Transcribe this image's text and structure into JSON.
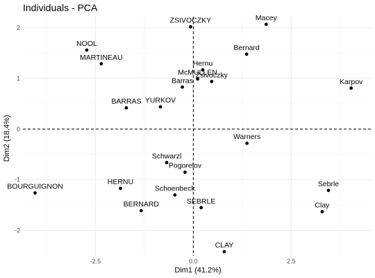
{
  "chart_data": {
    "type": "scatter",
    "title": "Individuals - PCA",
    "xlabel": "Dim1 (41.2%)",
    "ylabel": "Dim2 (18.4%)",
    "xlim": [
      -4.35,
      4.55
    ],
    "ylim": [
      -2.5,
      2.22
    ],
    "x_ticks": [
      -2.5,
      0.0,
      2.5
    ],
    "x_tick_labels": [
      "-2.5",
      "0.0",
      "2.5"
    ],
    "y_ticks": [
      -2,
      -1,
      0,
      1,
      2
    ],
    "y_tick_labels": [
      "-2",
      "-1",
      "0",
      "1",
      "2"
    ],
    "grid": true,
    "reference_lines": {
      "x": 0,
      "y": 0,
      "style": "dashed"
    },
    "points": [
      {
        "label": "ZSIVOCZKY",
        "x": -0.07,
        "y": 2.02
      },
      {
        "label": "Macey",
        "x": 1.86,
        "y": 2.07
      },
      {
        "label": "NOOL",
        "x": -2.72,
        "y": 1.56
      },
      {
        "label": "Bernard",
        "x": 1.36,
        "y": 1.48
      },
      {
        "label": "MARTINEAU",
        "x": -2.35,
        "y": 1.29
      },
      {
        "label": "Hernu",
        "x": 0.24,
        "y": 1.17
      },
      {
        "label": "McMULLEN",
        "x": 0.11,
        "y": 0.99
      },
      {
        "label": "Zsivoczky",
        "x": 0.47,
        "y": 0.94
      },
      {
        "label": "Barras",
        "x": -0.28,
        "y": 0.83
      },
      {
        "label": "Karpov",
        "x": 4.03,
        "y": 0.81
      },
      {
        "label": "BARRAS",
        "x": -1.71,
        "y": 0.42
      },
      {
        "label": "YURKOV",
        "x": -0.84,
        "y": 0.44
      },
      {
        "label": "Warners",
        "x": 1.37,
        "y": -0.28
      },
      {
        "label": "Schwarzl",
        "x": -0.68,
        "y": -0.66
      },
      {
        "label": "Pogorelov",
        "x": -0.21,
        "y": -0.85
      },
      {
        "label": "HERNU",
        "x": -1.86,
        "y": -1.17
      },
      {
        "label": "BOURGUIGNON",
        "x": -4.04,
        "y": -1.26
      },
      {
        "label": "Sebrle",
        "x": 3.45,
        "y": -1.21
      },
      {
        "label": "Schoenbeck",
        "x": -0.47,
        "y": -1.3
      },
      {
        "label": "BERNARD",
        "x": -1.33,
        "y": -1.61
      },
      {
        "label": "SEBRLE",
        "x": 0.2,
        "y": -1.55
      },
      {
        "label": "Clay",
        "x": 3.29,
        "y": -1.63
      },
      {
        "label": "CLAY",
        "x": 0.79,
        "y": -2.42
      }
    ]
  }
}
